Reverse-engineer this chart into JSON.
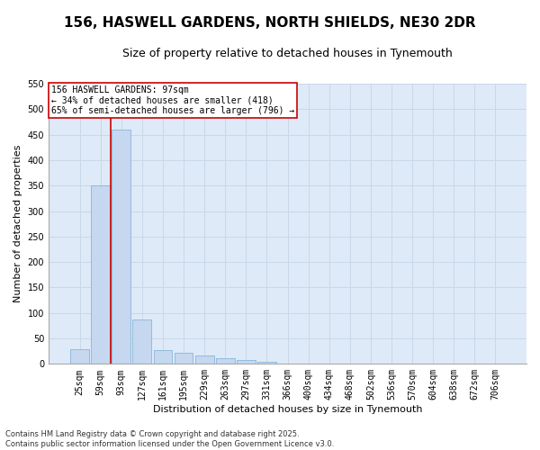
{
  "title_line1": "156, HASWELL GARDENS, NORTH SHIELDS, NE30 2DR",
  "title_line2": "Size of property relative to detached houses in Tynemouth",
  "xlabel": "Distribution of detached houses by size in Tynemouth",
  "ylabel": "Number of detached properties",
  "categories": [
    "25sqm",
    "59sqm",
    "93sqm",
    "127sqm",
    "161sqm",
    "195sqm",
    "229sqm",
    "263sqm",
    "297sqm",
    "331sqm",
    "366sqm",
    "400sqm",
    "434sqm",
    "468sqm",
    "502sqm",
    "536sqm",
    "570sqm",
    "604sqm",
    "638sqm",
    "672sqm",
    "706sqm"
  ],
  "values": [
    28,
    350,
    460,
    88,
    27,
    22,
    17,
    12,
    8,
    5,
    0,
    1,
    0,
    0,
    0,
    0,
    0,
    0,
    0,
    0,
    1
  ],
  "bar_color": "#c5d8f0",
  "bar_edge_color": "#7aadd4",
  "grid_color": "#c8d8e8",
  "background_color": "#deeaf7",
  "annotation_box_text": "156 HASWELL GARDENS: 97sqm\n← 34% of detached houses are smaller (418)\n65% of semi-detached houses are larger (796) →",
  "annotation_box_color": "#ffffff",
  "annotation_box_edge_color": "#cc0000",
  "redline_x": 1.5,
  "redline_color": "#cc0000",
  "ylim": [
    0,
    550
  ],
  "yticks": [
    0,
    50,
    100,
    150,
    200,
    250,
    300,
    350,
    400,
    450,
    500,
    550
  ],
  "footer_line1": "Contains HM Land Registry data © Crown copyright and database right 2025.",
  "footer_line2": "Contains public sector information licensed under the Open Government Licence v3.0.",
  "title_fontsize": 11,
  "subtitle_fontsize": 9,
  "axis_label_fontsize": 8,
  "tick_fontsize": 7,
  "annotation_fontsize": 7,
  "footer_fontsize": 6
}
